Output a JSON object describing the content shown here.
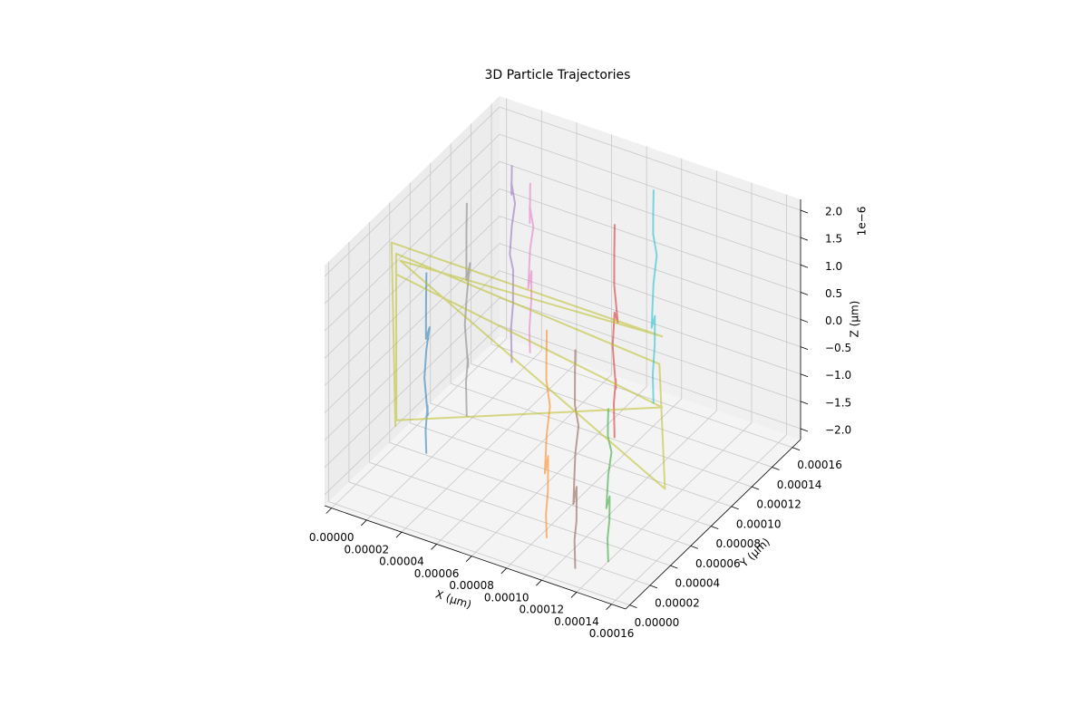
{
  "chart_data": {
    "type": "line3d",
    "title": "3D Particle Trajectories",
    "xlabel": "X (μm)",
    "ylabel": "Y (μm)",
    "zlabel": "Z (μm)",
    "z_offset_label": "1e−6",
    "xlim": [
      -4e-06,
      0.000168
    ],
    "ylim": [
      -4e-06,
      0.000168
    ],
    "zlim": [
      -2.2e-06,
      2.2e-06
    ],
    "xticks": [
      {
        "value": 0,
        "label": "0.00000"
      },
      {
        "value": 2e-05,
        "label": "0.00002"
      },
      {
        "value": 4e-05,
        "label": "0.00004"
      },
      {
        "value": 6e-05,
        "label": "0.00006"
      },
      {
        "value": 8e-05,
        "label": "0.00008"
      },
      {
        "value": 0.0001,
        "label": "0.00010"
      },
      {
        "value": 0.00012,
        "label": "0.00012"
      },
      {
        "value": 0.00014,
        "label": "0.00014"
      },
      {
        "value": 0.00016,
        "label": "0.00016"
      }
    ],
    "yticks": [
      {
        "value": 0,
        "label": "0.00000"
      },
      {
        "value": 2e-05,
        "label": "0.00002"
      },
      {
        "value": 4e-05,
        "label": "0.00004"
      },
      {
        "value": 6e-05,
        "label": "0.00006"
      },
      {
        "value": 8e-05,
        "label": "0.00008"
      },
      {
        "value": 0.0001,
        "label": "0.00010"
      },
      {
        "value": 0.00012,
        "label": "0.00012"
      },
      {
        "value": 0.00014,
        "label": "0.00014"
      },
      {
        "value": 0.00016,
        "label": "0.00016"
      }
    ],
    "zticks": [
      {
        "value": -2e-06,
        "label": "−2.0"
      },
      {
        "value": -1.5e-06,
        "label": "−1.5"
      },
      {
        "value": -1e-06,
        "label": "−1.0"
      },
      {
        "value": -5e-07,
        "label": "−0.5"
      },
      {
        "value": 0,
        "label": "0.0"
      },
      {
        "value": 5e-07,
        "label": "0.5"
      },
      {
        "value": 1e-06,
        "label": "1.0"
      },
      {
        "value": 1.5e-06,
        "label": "1.5"
      },
      {
        "value": 2e-06,
        "label": "2.0"
      }
    ],
    "grid": true,
    "series": [
      {
        "color": "#1f77b4",
        "x": [
          2.1e-05,
          2e-05,
          2.2e-05,
          2.15e-05,
          2.05e-05,
          2.1e-05,
          2.2e-05,
          2.08e-05,
          2.13e-05,
          2.06e-05
        ],
        "y": [
          5.3e-05,
          5.4e-05,
          5.25e-05,
          5.35e-05,
          5.2e-05,
          5.3e-05,
          5.45e-05,
          5.3e-05,
          5.22e-05,
          5.38e-05
        ],
        "z": [
          -2e-06,
          -1.6e-06,
          -1.1e-06,
          -1.3e-06,
          -6e-07,
          -1e-07,
          3e-07,
          1e-07,
          8e-07,
          1.3e-06
        ]
      },
      {
        "color": "#ff7f0e",
        "x": [
          0.000111,
          0.00011,
          0.000112,
          0.0001115,
          0.0001105,
          0.000111,
          0.000112,
          0.0001108,
          0.0001113,
          0.0001106
        ],
        "y": [
          1.65e-05,
          1.75e-05,
          1.6e-05,
          1.7e-05,
          1.55e-05,
          1.65e-05,
          1.8e-05,
          1.65e-05,
          1.57e-05,
          1.73e-05
        ],
        "z": [
          -1.9e-06,
          -1.5e-06,
          -1e-06,
          -4e-07,
          -7e-07,
          0,
          5e-07,
          1e-06,
          1.4e-06,
          1.9e-06
        ]
      },
      {
        "color": "#2ca02c",
        "x": [
          0.000145,
          0.000144,
          0.000146,
          0.0001455,
          0.0001445,
          0.000145,
          0.000146,
          0.0001448,
          0.0001453,
          0.0001446
        ],
        "y": [
          1.85e-05,
          1.95e-05,
          1.8e-05,
          1.9e-05,
          1.75e-05,
          1.85e-05,
          2e-05,
          1.85e-05,
          1.77e-05,
          1.93e-05
        ],
        "z": [
          -2e-06,
          -1.6e-06,
          -1.2e-06,
          -8e-07,
          -1e-06,
          -4e-07,
          0,
          3e-07,
          6e-07,
          8e-07
        ]
      },
      {
        "color": "#d62728",
        "x": [
          9.6e-05,
          9.5e-05,
          9.7e-05,
          9.65e-05,
          9.55e-05,
          9.6e-05,
          9.7e-05,
          9.58e-05,
          9.63e-05,
          9.56e-05
        ],
        "y": [
          0.000109,
          0.00011,
          0.0001085,
          0.0001095,
          0.000108,
          0.000109,
          0.0001105,
          0.000109,
          0.0001082,
          0.0001098
        ],
        "z": [
          -1.9e-06,
          -1.3e-06,
          -8e-07,
          -1e-06,
          -2e-07,
          4e-07,
          2e-07,
          9e-07,
          1.5e-06,
          2e-06
        ]
      },
      {
        "color": "#9467bd",
        "x": [
          1.75e-05,
          1.65e-05,
          1.85e-05,
          1.8e-05,
          1.7e-05,
          1.75e-05,
          1.85e-05,
          1.73e-05,
          1.78e-05,
          1.71e-05
        ],
        "y": [
          0.000143,
          0.000144,
          0.0001425,
          0.0001435,
          0.000142,
          0.000143,
          0.0001445,
          0.000143,
          0.0001422,
          0.0001438
        ],
        "z": [
          -2e-06,
          -1.4e-06,
          -9e-07,
          -3e-07,
          0,
          5e-07,
          9e-07,
          1.3e-06,
          1.1e-06,
          1.6e-06
        ]
      },
      {
        "color": "#8c564b",
        "x": [
          0.000134,
          0.000133,
          0.000135,
          0.0001345,
          0.0001335,
          0.000134,
          0.000135,
          0.0001338,
          0.0001343,
          0.0001336
        ],
        "y": [
          5e-06,
          6e-06,
          4.5e-06,
          5.5e-06,
          4e-06,
          5e-06,
          6.5e-06,
          5e-06,
          4.2e-06,
          5.8e-06
        ],
        "z": [
          -2e-06,
          -1.5e-06,
          -1.1e-06,
          -5e-07,
          -8e-07,
          1e-07,
          6e-07,
          1e-06,
          1.6e-06,
          2e-06
        ]
      },
      {
        "color": "#e377c2",
        "x": [
          2.1e-05,
          2e-05,
          2.2e-05,
          2.15e-05,
          2.05e-05,
          2.1e-05,
          2.2e-05,
          2.08e-05,
          2.13e-05,
          2.06e-05
        ],
        "y": [
          0.000155,
          0.000156,
          0.0001545,
          0.0001555,
          0.000154,
          0.000155,
          0.0001565,
          0.000155,
          0.0001542,
          0.0001558
        ],
        "z": [
          -2e-06,
          -1.6e-06,
          -1e-06,
          -5e-07,
          -8e-07,
          -1e-07,
          3e-07,
          7e-07,
          4e-07,
          1.1e-06
        ]
      },
      {
        "color": "#7f7f7f",
        "x": [
          2.2e-05,
          2.1e-05,
          2.3e-05,
          2.25e-05,
          2.15e-05,
          2.2e-05,
          2.3e-05,
          2.18e-05,
          2.23e-05,
          2.16e-05
        ],
        "y": [
          9.1e-05,
          9.2e-05,
          9.05e-05,
          9.15e-05,
          9e-05,
          9.1e-05,
          9.25e-05,
          9.1e-05,
          9.02e-05,
          9.18e-05
        ],
        "z": [
          -2e-06,
          -1.4e-06,
          -9e-07,
          -1.1e-06,
          -3e-07,
          2e-07,
          8e-07,
          5e-07,
          1.4e-06,
          1.9e-06
        ]
      },
      {
        "color": "#bcbd22",
        "x": [
          1e-06,
          0,
          0.000136,
          2e-06,
          0.000137,
          0.000135,
          2e-06,
          1e-06,
          0.000136,
          1.5e-06
        ],
        "y": [
          5.7e-05,
          5.5e-05,
          8.7e-05,
          6e-05,
          8.8e-05,
          8.6e-05,
          5.6e-05,
          5.8e-05,
          8.7e-05,
          5.7e-05
        ],
        "z": [
          -1.8e-06,
          1.6e-06,
          8e-07,
          1.2e-06,
          -2e-06,
          3e-07,
          1.4e-06,
          -1.7e-06,
          -5e-07,
          1e-06
        ]
      },
      {
        "color": "#17becf",
        "x": [
          9.5e-05,
          9.4e-05,
          9.6e-05,
          9.55e-05,
          9.45e-05,
          9.5e-05,
          9.6e-05,
          9.48e-05,
          9.53e-05,
          9.46e-05
        ],
        "y": [
          0.000149,
          0.00015,
          0.0001485,
          0.0001495,
          0.000148,
          0.000149,
          0.0001505,
          0.000149,
          0.0001482,
          0.0001498
        ],
        "z": [
          -2e-06,
          -1.5e-06,
          -9e-07,
          -4e-07,
          -6e-07,
          2e-07,
          7e-07,
          1.1e-06,
          1.5e-06,
          1.9e-06
        ]
      }
    ]
  }
}
